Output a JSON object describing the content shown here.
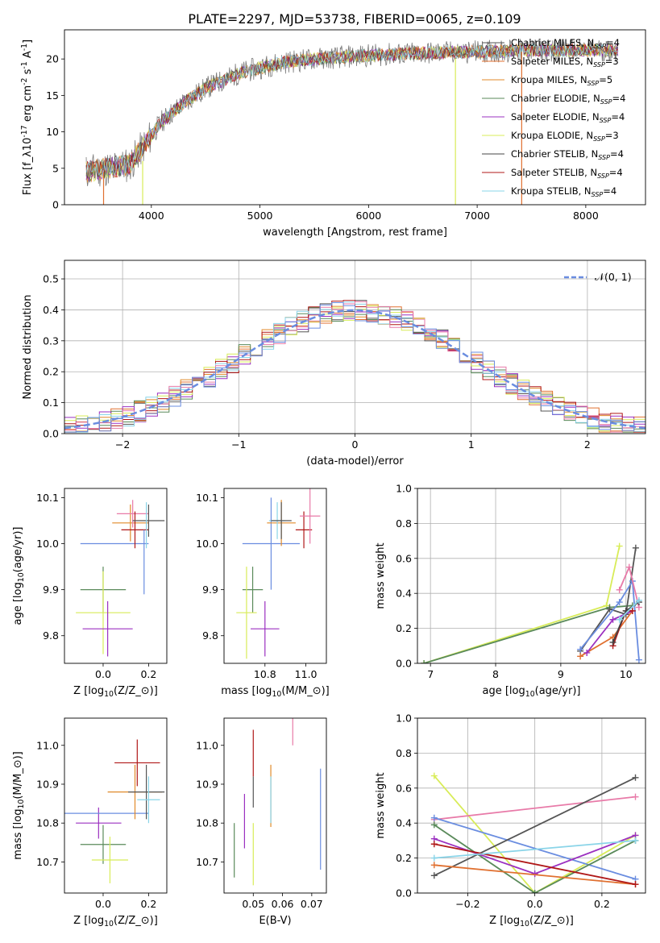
{
  "figure_title": "PLATE=2297, MJD=53738, FIBERID=0065, z=0.109",
  "colors": {
    "Chabrier MILES": "#555555",
    "Salpeter MILES": "#e07030",
    "Kroupa MILES": "#e08a2a",
    "Chabrier ELODIE": "#5a8a5a",
    "Salpeter ELODIE": "#9b30c0",
    "Kroupa ELODIE": "#d8ec58",
    "Chabrier STELIB": "#444444",
    "Salpeter STELIB": "#b01818",
    "Kroupa STELIB": "#8ad4e8",
    "pink": "#e87aa8",
    "blue": "#6a8de0",
    "gauss": "#6a8de0"
  },
  "chart_data": [
    {
      "id": "spectrum",
      "type": "line",
      "title": "PLATE=2297, MJD=53738, FIBERID=0065, z=0.109",
      "xlabel": "wavelength [Angstrom, rest frame]",
      "ylabel": "Flux [f$_\\lambda$10$^{-17}$ erg cm$^{-2}$ s$^{-1}$ A$^{-1}$]",
      "xlim": [
        3200,
        8550
      ],
      "ylim": [
        0,
        24
      ],
      "xticks": [
        4000,
        5000,
        6000,
        7000,
        8000
      ],
      "yticks": [
        0,
        5,
        10,
        15,
        20
      ],
      "legend_position": "right",
      "legend": [
        {
          "label": "Chabrier MILES, N",
          "sub": "SSP",
          "tail": "=4",
          "color": "#555555"
        },
        {
          "label": "Salpeter MILES, N",
          "sub": "SSP",
          "tail": "=3",
          "color": "#e07030"
        },
        {
          "label": "Kroupa MILES, N",
          "sub": "SSP",
          "tail": "=5",
          "color": "#e08a2a"
        },
        {
          "label": "Chabrier ELODIE, N",
          "sub": "SSP",
          "tail": "=4",
          "color": "#5a8a5a"
        },
        {
          "label": "Salpeter ELODIE, N",
          "sub": "SSP",
          "tail": "=4",
          "color": "#9b30c0"
        },
        {
          "label": "Kroupa ELODIE, N",
          "sub": "SSP",
          "tail": "=3",
          "color": "#d8ec58"
        },
        {
          "label": "Chabrier STELIB, N",
          "sub": "SSP",
          "tail": "=4",
          "color": "#444444"
        },
        {
          "label": "Salpeter STELIB, N",
          "sub": "SSP",
          "tail": "=4",
          "color": "#b01818"
        },
        {
          "label": "Kroupa STELIB, N",
          "sub": "SSP",
          "tail": "=4",
          "color": "#8ad4e8"
        }
      ],
      "continuum": {
        "x": [
          3400,
          3600,
          3800,
          3950,
          4100,
          4300,
          4500,
          4800,
          5000,
          5200,
          5500,
          6000,
          6500,
          7000,
          7500,
          8000,
          8300
        ],
        "y": [
          4.5,
          5.0,
          5.5,
          8.5,
          11.5,
          14.0,
          16.0,
          18.0,
          18.8,
          19.5,
          20.0,
          20.5,
          20.8,
          21.0,
          21.2,
          21.2,
          21.2
        ]
      },
      "data_x_range": [
        3400,
        8300
      ],
      "spikes": [
        {
          "x": 3560,
          "y0": 0,
          "y1": 4.5,
          "color": "#e07030"
        },
        {
          "x": 3920,
          "y0": 0,
          "y1": 6.0,
          "color": "#d8ec58"
        },
        {
          "x": 6800,
          "y0": 0,
          "y1": 20.0,
          "color": "#d8ec58"
        },
        {
          "x": 7410,
          "y0": 0,
          "y1": 21.0,
          "color": "#e07030"
        }
      ]
    },
    {
      "id": "residuals",
      "type": "histogram",
      "xlabel": "(data-model)/error",
      "ylabel": "Normed distribution",
      "xlim": [
        -2.5,
        2.5
      ],
      "ylim": [
        0,
        0.56
      ],
      "xticks": [
        -2,
        -1,
        0,
        1,
        2
      ],
      "yticks": [
        0.0,
        0.1,
        0.2,
        0.3,
        0.4,
        0.5
      ],
      "legend_position": "top-right",
      "legend": [
        {
          "label": "𝒩(0, 1)",
          "color": "#6a8de0",
          "style": "dashed"
        }
      ],
      "bin_width": 0.1,
      "gaussian": {
        "mu": 0,
        "sigma": 1
      },
      "series": [
        {
          "name": "Chabrier MILES",
          "color": "#555555",
          "seed": 1
        },
        {
          "name": "Salpeter MILES",
          "color": "#e07030",
          "seed": 2
        },
        {
          "name": "Kroupa MILES",
          "color": "#e08a2a",
          "seed": 3
        },
        {
          "name": "Chabrier ELODIE",
          "color": "#5a8a5a",
          "seed": 4
        },
        {
          "name": "Salpeter ELODIE",
          "color": "#9b30c0",
          "seed": 5
        },
        {
          "name": "Kroupa ELODIE",
          "color": "#d8ec58",
          "seed": 6
        },
        {
          "name": "Salpeter STELIB",
          "color": "#b01818",
          "seed": 7
        },
        {
          "name": "Kroupa STELIB",
          "color": "#8ad4e8",
          "seed": 8
        },
        {
          "name": "pink",
          "color": "#e87aa8",
          "seed": 9
        },
        {
          "name": "blue",
          "color": "#6a8de0",
          "seed": 10
        }
      ]
    },
    {
      "id": "age_vs_Z",
      "type": "errorbar",
      "xlabel": "Z [log$_{10}$($Z/Z_\\odot$)]",
      "ylabel": "age  [log$_{10}$($age/yr$)]",
      "xlim": [
        -0.17,
        0.28
      ],
      "ylim": [
        9.74,
        10.12
      ],
      "xticks": [
        0.0,
        0.2
      ],
      "yticks": [
        9.8,
        9.9,
        10.0,
        10.1
      ],
      "points": [
        {
          "x": 0.0,
          "y": 9.9,
          "xerr": 0.1,
          "yerr": 0.05,
          "color": "#5a8a5a"
        },
        {
          "x": 0.0,
          "y": 9.85,
          "xerr": 0.12,
          "yerr": 0.09,
          "color": "#d8ec58"
        },
        {
          "x": 0.02,
          "y": 9.815,
          "xerr": 0.11,
          "yerr": 0.06,
          "color": "#9b30c0"
        },
        {
          "x": 0.05,
          "y": 10.0,
          "xerr": 0.15,
          "yerr": 0.0,
          "color": "#6a8de0"
        },
        {
          "x": 0.12,
          "y": 10.045,
          "xerr": 0.08,
          "yerr": 0.04,
          "color": "#e08a2a"
        },
        {
          "x": 0.13,
          "y": 10.065,
          "xerr": 0.07,
          "yerr": 0.03,
          "color": "#e87aa8"
        },
        {
          "x": 0.14,
          "y": 10.03,
          "xerr": 0.06,
          "yerr": 0.04,
          "color": "#b01818"
        },
        {
          "x": 0.18,
          "y": 9.96,
          "xerr": 0.0,
          "yerr": 0.07,
          "color": "#6a8de0"
        },
        {
          "x": 0.2,
          "y": 10.05,
          "xerr": 0.07,
          "yerr": 0.035,
          "color": "#555555"
        },
        {
          "x": 0.19,
          "y": 10.04,
          "xerr": 0.0,
          "yerr": 0.05,
          "color": "#8ad4e8"
        }
      ]
    },
    {
      "id": "age_vs_mass",
      "type": "errorbar",
      "xlabel": "mass [log$_{10}$($M/M_\\odot$)]",
      "ylabel": "",
      "xlim": [
        10.6,
        11.1
      ],
      "ylim": [
        9.74,
        10.12
      ],
      "xticks": [
        10.8,
        11.0
      ],
      "yticks": [
        9.8,
        9.9,
        10.0,
        10.1
      ],
      "points": [
        {
          "x": 10.74,
          "y": 9.9,
          "xerr": 0.05,
          "yerr": 0.05,
          "color": "#5a8a5a"
        },
        {
          "x": 10.71,
          "y": 9.85,
          "xerr": 0.05,
          "yerr": 0.1,
          "color": "#d8ec58"
        },
        {
          "x": 10.8,
          "y": 9.815,
          "xerr": 0.07,
          "yerr": 0.06,
          "color": "#9b30c0"
        },
        {
          "x": 10.83,
          "y": 10.0,
          "xerr": 0.14,
          "yerr": 0.1,
          "color": "#6a8de0"
        },
        {
          "x": 10.88,
          "y": 10.045,
          "xerr": 0.07,
          "yerr": 0.05,
          "color": "#e08a2a"
        },
        {
          "x": 10.86,
          "y": 10.05,
          "xerr": 0.04,
          "yerr": 0.04,
          "color": "#8ad4e8"
        },
        {
          "x": 10.88,
          "y": 10.05,
          "xerr": 0.05,
          "yerr": 0.04,
          "color": "#555555"
        },
        {
          "x": 10.99,
          "y": 10.03,
          "xerr": 0.04,
          "yerr": 0.04,
          "color": "#b01818"
        },
        {
          "x": 11.02,
          "y": 10.06,
          "xerr": 0.05,
          "yerr": 0.06,
          "color": "#e87aa8"
        }
      ]
    },
    {
      "id": "mass_weight_vs_age",
      "type": "line",
      "xlabel": "age  [log$_{10}$($age/yr$)]",
      "ylabel": "mass weight",
      "xlim": [
        6.8,
        10.3
      ],
      "ylim": [
        0,
        1
      ],
      "xticks": [
        7,
        8,
        9,
        10
      ],
      "yticks": [
        0.0,
        0.2,
        0.4,
        0.6,
        0.8,
        1.0
      ],
      "series": [
        {
          "name": "Kroupa ELODIE",
          "color": "#d8ec58",
          "x": [
            6.9,
            9.7,
            9.9
          ],
          "y": [
            0.0,
            0.33,
            0.67
          ]
        },
        {
          "name": "Chabrier ELODIE",
          "color": "#5a8a5a",
          "x": [
            6.9,
            9.75,
            10.1
          ],
          "y": [
            0.0,
            0.32,
            0.33
          ]
        },
        {
          "name": "Chabrier MILES",
          "color": "#555555",
          "x": [
            9.3,
            9.75,
            10.0,
            10.15
          ],
          "y": [
            0.07,
            0.31,
            0.28,
            0.66
          ]
        },
        {
          "name": "Salpeter MILES",
          "color": "#e07030",
          "x": [
            9.3,
            9.8,
            10.1
          ],
          "y": [
            0.04,
            0.15,
            0.3
          ]
        },
        {
          "name": "Salpeter ELODIE",
          "color": "#9b30c0",
          "x": [
            9.4,
            9.8,
            10.1
          ],
          "y": [
            0.06,
            0.25,
            0.3
          ]
        },
        {
          "name": "blue",
          "color": "#6a8de0",
          "x": [
            9.3,
            9.9,
            10.1,
            10.2
          ],
          "y": [
            0.08,
            0.35,
            0.47,
            0.02
          ]
        },
        {
          "name": "pink",
          "color": "#e87aa8",
          "x": [
            9.9,
            10.05,
            10.2
          ],
          "y": [
            0.42,
            0.55,
            0.32
          ]
        },
        {
          "name": "Salpeter STELIB",
          "color": "#b01818",
          "x": [
            9.8,
            10.0,
            10.1
          ],
          "y": [
            0.1,
            0.3,
            0.3
          ]
        },
        {
          "name": "Chabrier STELIB",
          "color": "#444444",
          "x": [
            9.8,
            10.0,
            10.2
          ],
          "y": [
            0.12,
            0.3,
            0.35
          ]
        },
        {
          "name": "Kroupa STELIB",
          "color": "#8ad4e8",
          "x": [
            9.9,
            10.2
          ],
          "y": [
            0.25,
            0.36
          ]
        }
      ]
    },
    {
      "id": "mass_vs_Z",
      "type": "errorbar",
      "xlabel": "Z [log$_{10}$($Z/Z_\\odot$)]",
      "ylabel": "mass [log$_{10}$($M/M_\\odot$)]",
      "xlim": [
        -0.17,
        0.28
      ],
      "ylim": [
        10.62,
        11.07
      ],
      "xticks": [
        0.0,
        0.2
      ],
      "yticks": [
        10.7,
        10.8,
        10.9,
        11.0
      ],
      "points": [
        {
          "x": 0.0,
          "y": 10.745,
          "xerr": 0.1,
          "yerr": 0.05,
          "color": "#5a8a5a"
        },
        {
          "x": 0.03,
          "y": 10.705,
          "xerr": 0.08,
          "yerr": 0.06,
          "color": "#d8ec58"
        },
        {
          "x": -0.02,
          "y": 10.8,
          "xerr": 0.1,
          "yerr": 0.04,
          "color": "#9b30c0"
        },
        {
          "x": 0.0,
          "y": 10.825,
          "xerr": 0.2,
          "yerr": 0.0,
          "color": "#6a8de0"
        },
        {
          "x": 0.14,
          "y": 10.88,
          "xerr": 0.12,
          "yerr": 0.07,
          "color": "#e08a2a"
        },
        {
          "x": 0.19,
          "y": 10.88,
          "xerr": 0.08,
          "yerr": 0.07,
          "color": "#555555"
        },
        {
          "x": 0.13,
          "y": 11.11,
          "xerr": 0.08,
          "yerr": 0.03,
          "color": "#e87aa8"
        },
        {
          "x": 0.15,
          "y": 10.955,
          "xerr": 0.1,
          "yerr": 0.06,
          "color": "#b01818"
        },
        {
          "x": 0.2,
          "y": 10.86,
          "xerr": 0.05,
          "yerr": 0.06,
          "color": "#8ad4e8"
        }
      ]
    },
    {
      "id": "mass_vs_EBV",
      "type": "errorbar",
      "xlabel": "E(B-V)",
      "ylabel": "",
      "xlim": [
        0.04,
        0.075
      ],
      "ylim": [
        10.62,
        11.07
      ],
      "xticks": [
        0.05,
        0.06,
        0.07
      ],
      "yticks": [
        10.7,
        10.8,
        10.9,
        11.0
      ],
      "points": [
        {
          "x": 0.0435,
          "y": 10.73,
          "xerr": 0.0,
          "yerr": 0.07,
          "color": "#5a8a5a"
        },
        {
          "x": 0.047,
          "y": 10.805,
          "xerr": 0.0,
          "yerr": 0.07,
          "color": "#9b30c0"
        },
        {
          "x": 0.05,
          "y": 10.72,
          "xerr": 0.0,
          "yerr": 0.08,
          "color": "#d8ec58"
        },
        {
          "x": 0.05,
          "y": 10.98,
          "xerr": 0.0,
          "yerr": 0.06,
          "color": "#b01818"
        },
        {
          "x": 0.05,
          "y": 10.88,
          "xerr": 0.0,
          "yerr": 0.04,
          "color": "#555555"
        },
        {
          "x": 0.056,
          "y": 10.87,
          "xerr": 0.0,
          "yerr": 0.08,
          "color": "#e08a2a"
        },
        {
          "x": 0.056,
          "y": 10.86,
          "xerr": 0.0,
          "yerr": 0.06,
          "color": "#8ad4e8"
        },
        {
          "x": 0.0635,
          "y": 11.07,
          "xerr": 0.0,
          "yerr": 0.07,
          "color": "#e87aa8"
        },
        {
          "x": 0.073,
          "y": 10.81,
          "xerr": 0.0,
          "yerr": 0.13,
          "color": "#6a8de0"
        }
      ]
    },
    {
      "id": "mass_weight_vs_Z",
      "type": "line",
      "xlabel": "Z [log$_{10}$($Z/Z_\\odot$)]",
      "ylabel": "mass weight",
      "xlim": [
        -0.35,
        0.33
      ],
      "ylim": [
        0,
        1
      ],
      "xticks": [
        -0.2,
        0.0,
        0.2
      ],
      "yticks": [
        0.0,
        0.2,
        0.4,
        0.6,
        0.8,
        1.0
      ],
      "series": [
        {
          "name": "Kroupa ELODIE",
          "color": "#d8ec58",
          "x": [
            -0.3,
            0.0,
            0.3
          ],
          "y": [
            0.67,
            0.0,
            0.33
          ]
        },
        {
          "name": "pink",
          "color": "#e87aa8",
          "x": [
            -0.3,
            0.3
          ],
          "y": [
            0.42,
            0.55
          ]
        },
        {
          "name": "blue",
          "color": "#6a8de0",
          "x": [
            -0.3,
            0.3
          ],
          "y": [
            0.43,
            0.08
          ]
        },
        {
          "name": "Chabrier ELODIE",
          "color": "#5a8a5a",
          "x": [
            -0.3,
            0.0,
            0.3
          ],
          "y": [
            0.39,
            0.0,
            0.3
          ]
        },
        {
          "name": "Salpeter ELODIE",
          "color": "#9b30c0",
          "x": [
            -0.3,
            0.0,
            0.3
          ],
          "y": [
            0.31,
            0.11,
            0.33
          ]
        },
        {
          "name": "Chabrier MILES",
          "color": "#555555",
          "x": [
            -0.3,
            0.3
          ],
          "y": [
            0.1,
            0.66
          ]
        },
        {
          "name": "Salpeter MILES",
          "color": "#e07030",
          "x": [
            -0.3,
            0.3
          ],
          "y": [
            0.16,
            0.05
          ]
        },
        {
          "name": "Salpeter STELIB",
          "color": "#b01818",
          "x": [
            -0.3,
            0.3
          ],
          "y": [
            0.28,
            0.05
          ]
        },
        {
          "name": "Kroupa STELIB",
          "color": "#8ad4e8",
          "x": [
            -0.3,
            0.3
          ],
          "y": [
            0.2,
            0.3
          ]
        }
      ]
    }
  ]
}
